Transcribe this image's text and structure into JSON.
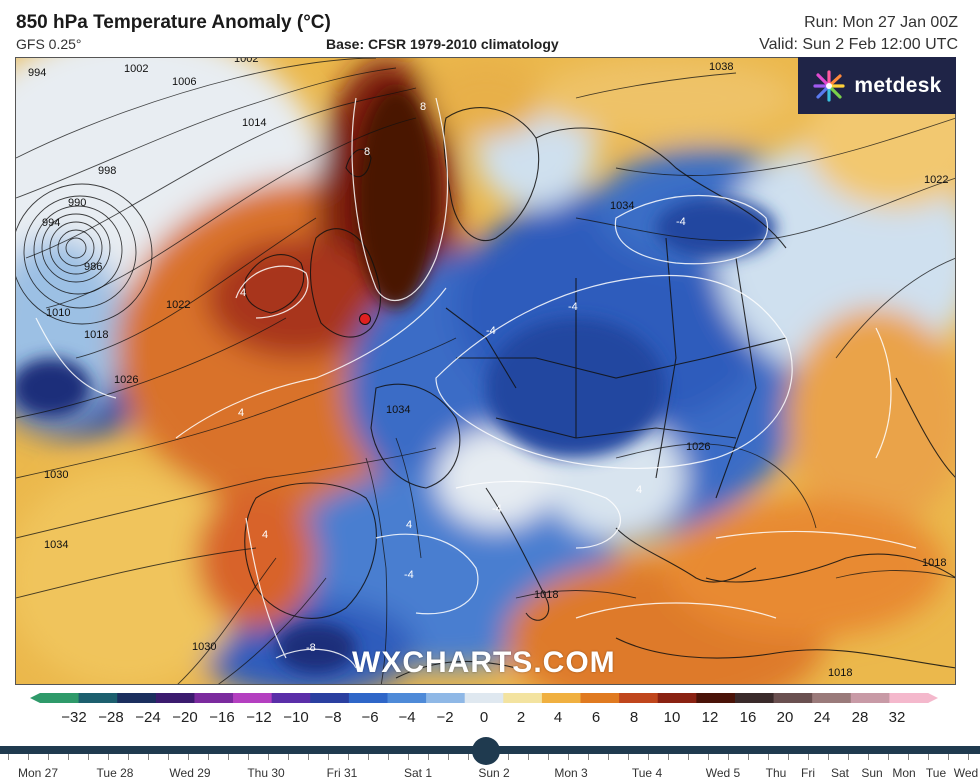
{
  "header": {
    "title": "850 hPa Temperature Anomaly (°C)",
    "model": "GFS 0.25°",
    "base": "Base: CFSR 1979-2010 climatology",
    "run": "Run: Mon 27 Jan 00Z",
    "valid": "Valid: Sun 2 Feb 12:00 UTC"
  },
  "logo": {
    "text": "metdesk",
    "icon": "metdesk-burst-icon"
  },
  "watermark": "WXCHARTS.COM",
  "isobar_labels": [
    "994",
    "1002",
    "1002",
    "1006",
    "1014",
    "1038",
    "998",
    "990",
    "994",
    "986",
    "1010",
    "1018",
    "1022",
    "1022",
    "1026",
    "1030",
    "1034",
    "1034",
    "1034",
    "1026",
    "1018",
    "1018",
    "1030",
    "1018"
  ],
  "contour_labels": [
    "8",
    "8",
    "4",
    "4",
    "-4",
    "-4",
    "-4",
    "-4",
    "-4",
    "-8",
    "4",
    "4",
    "4"
  ],
  "colorbar": {
    "labels": [
      "−32",
      "−28",
      "−24",
      "−20",
      "−16",
      "−12",
      "−10",
      "−8",
      "−6",
      "−4",
      "−2",
      "0",
      "2",
      "4",
      "6",
      "8",
      "10",
      "12",
      "16",
      "20",
      "24",
      "28",
      "32"
    ],
    "colors": [
      "#2f9a6a",
      "#1c5f6e",
      "#1b2f5e",
      "#3b1b6e",
      "#7b2a9e",
      "#b43fc0",
      "#5a2ea8",
      "#2a3fa0",
      "#2f66c8",
      "#4e8ad8",
      "#8fb8e6",
      "#dfe8f0",
      "#f3e3a0",
      "#f0b040",
      "#e07a20",
      "#c0461c",
      "#8a2212",
      "#4a1308",
      "#3a2a2a",
      "#6a5050",
      "#9a7a7a",
      "#c89aa6",
      "#f4b8cc"
    ]
  },
  "timeline": {
    "days": [
      "Mon 27",
      "Tue 28",
      "Wed 29",
      "Thu 30",
      "Fri 31",
      "Sat 1",
      "Sun 2",
      "Mon 3",
      "Tue 4",
      "Wed 5",
      "Thu",
      "Fri",
      "Sat",
      "Sun",
      "Mon",
      "Tue",
      "Wed"
    ],
    "selected": "Sun 2"
  },
  "features": {
    "marker": "red-location-marker"
  }
}
